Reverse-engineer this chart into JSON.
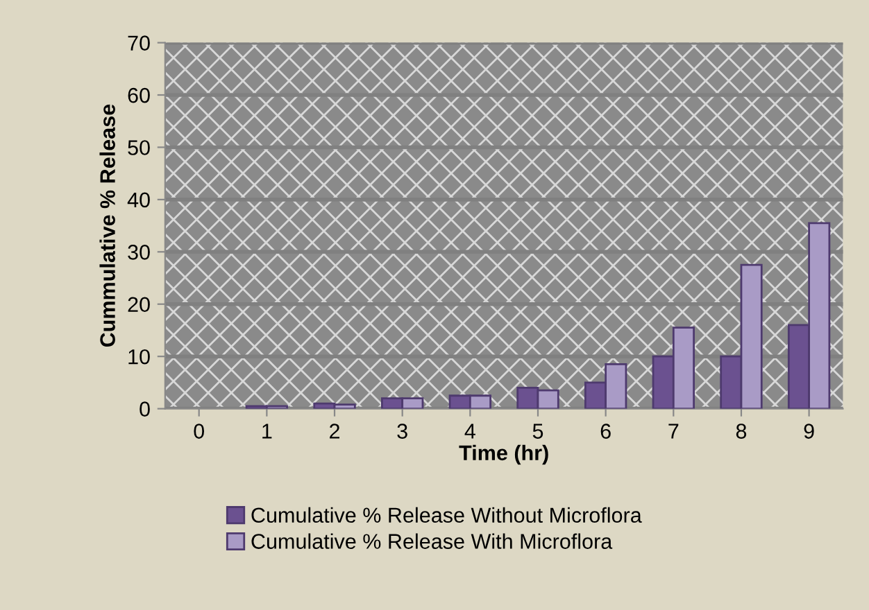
{
  "chart_data": {
    "type": "bar",
    "xlabel": "Time (hr)",
    "ylabel": "Cummulative % Release",
    "categories": [
      "0",
      "1",
      "2",
      "3",
      "4",
      "5",
      "6",
      "7",
      "8",
      "9"
    ],
    "series": [
      {
        "name": "Cumulative % Release Without Microflora",
        "color": "#6b5190",
        "values": [
          0,
          0.5,
          1,
          2,
          2.5,
          4,
          5,
          10,
          10,
          16
        ]
      },
      {
        "name": "Cumulative % Release With Microflora",
        "color": "#a99bc6",
        "values": [
          0,
          0.5,
          0.8,
          2,
          2.5,
          3.5,
          8.5,
          15.5,
          27.5,
          35.5
        ]
      }
    ],
    "ylim": [
      0,
      70
    ],
    "yticks": [
      0,
      10,
      20,
      30,
      40,
      50,
      60,
      70
    ],
    "grid": "y",
    "legend": "bottom"
  }
}
